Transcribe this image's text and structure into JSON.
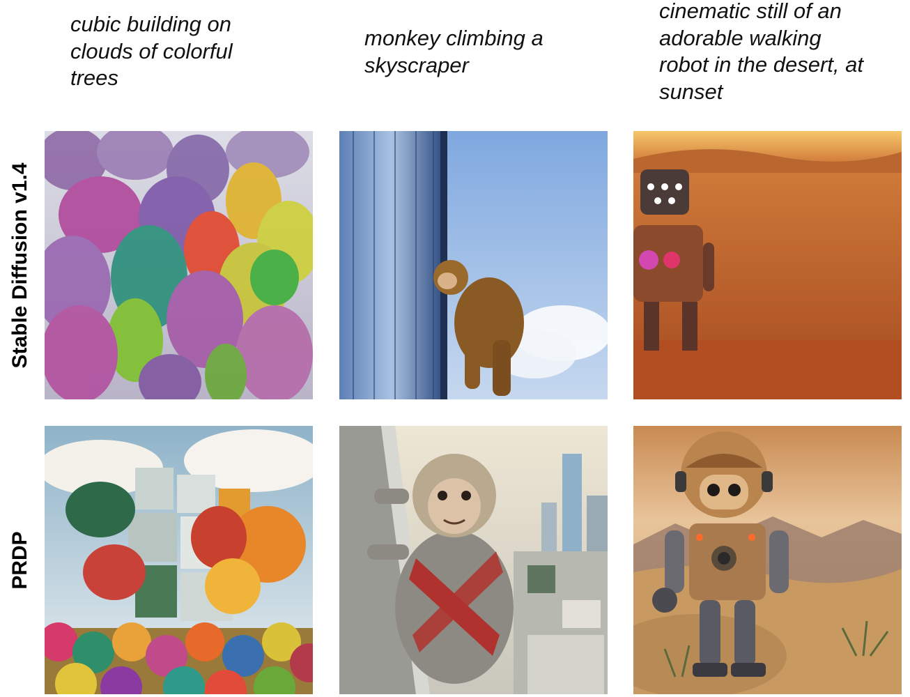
{
  "prompts": [
    "cubic building on\nclouds of colorful\ntrees",
    "monkey climbing a\nskyscraper",
    "cinematic still of an\nadorable walking\nrobot in the desert, at\nsunset"
  ],
  "row_labels": {
    "baseline": "Stable Diffusion v1.4",
    "ours": "PRDP"
  },
  "images": {
    "sd_trees": "colorful-forest-photo",
    "sd_monkey": "monkey-on-skyscraper-photo",
    "sd_robot": "robot-in-red-desert-photo",
    "prdp_trees": "cubic-building-among-colorful-trees-photo",
    "prdp_monkey": "monkey-climbing-skyscraper-photo",
    "prdp_robot": "cute-robot-desert-sunset-photo"
  }
}
